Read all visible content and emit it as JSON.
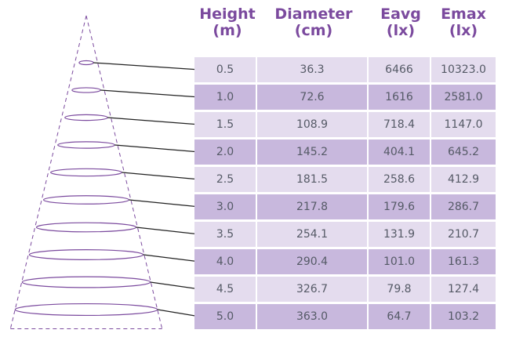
{
  "chart_data": {
    "type": "table",
    "columns": [
      {
        "key": "height",
        "label": "Height",
        "unit": "(m)"
      },
      {
        "key": "diameter",
        "label": "Diameter",
        "unit": "(cm)"
      },
      {
        "key": "eavg",
        "label": "Eavg",
        "unit": "(lx)"
      },
      {
        "key": "emax",
        "label": "Emax",
        "unit": "(lx)"
      }
    ],
    "rows": [
      [
        "0.5",
        "36.3",
        "6466",
        "10323.0"
      ],
      [
        "1.0",
        "72.6",
        "1616",
        "2581.0"
      ],
      [
        "1.5",
        "108.9",
        "718.4",
        "1147.0"
      ],
      [
        "2.0",
        "145.2",
        "404.1",
        "645.2"
      ],
      [
        "2.5",
        "181.5",
        "258.6",
        "412.9"
      ],
      [
        "3.0",
        "217.8",
        "179.6",
        "286.7"
      ],
      [
        "3.5",
        "254.1",
        "131.9",
        "210.7"
      ],
      [
        "4.0",
        "290.4",
        "101.0",
        "161.3"
      ],
      [
        "4.5",
        "326.7",
        "79.8",
        "127.4"
      ],
      [
        "5.0",
        "363.0",
        "64.7",
        "103.2"
      ]
    ],
    "beam_diagram": {
      "heights_m": [
        0.5,
        1.0,
        1.5,
        2.0,
        2.5,
        3.0,
        3.5,
        4.0,
        4.5,
        5.0
      ],
      "diameters_cm": [
        36.3,
        72.6,
        108.9,
        145.2,
        181.5,
        217.8,
        254.1,
        290.4,
        326.7,
        363.0
      ]
    }
  },
  "colors": {
    "header_text": "#7b4a9e",
    "row_light": "#e4dcee",
    "row_dark": "#c8b8dd",
    "cell_text": "#555a66",
    "cone_line": "#7b4a9e",
    "leader_line": "#222222"
  }
}
